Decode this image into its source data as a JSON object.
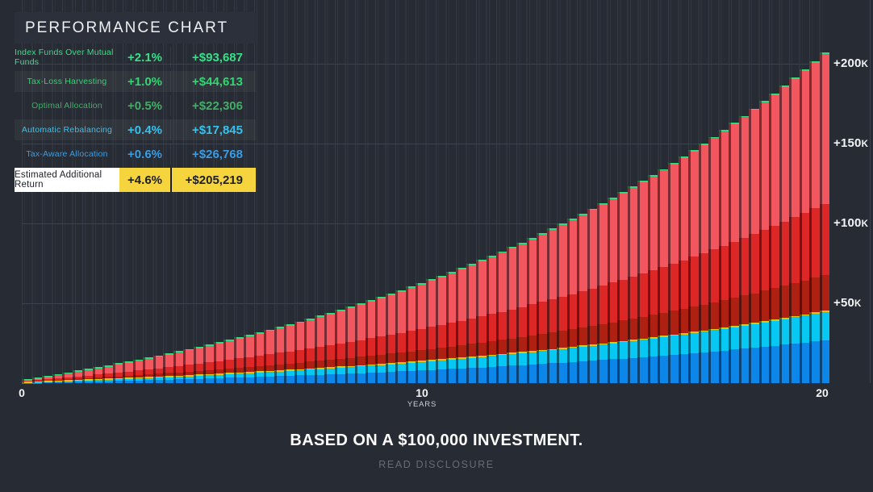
{
  "colors": {
    "page_bg": "#272b33",
    "panel_header_bg": "#2b303a",
    "highlight_label_bg": "#ffffff",
    "highlight_value_bg": "#f6d43d",
    "highlight_text": "#1d1f24",
    "grid_line": "#3b414d"
  },
  "legend": {
    "title": "PERFORMANCE CHART",
    "rows": [
      {
        "label": "Index Funds Over Mutual Funds",
        "percent": "+2.1%",
        "amount": "+$93,687",
        "color": "#35e088",
        "highlight": false
      },
      {
        "label": "Tax-Loss Harvesting",
        "percent": "+1.0%",
        "amount": "+$44,613",
        "color": "#2fd671",
        "highlight": false
      },
      {
        "label": "Optimal Allocation",
        "percent": "+0.5%",
        "amount": "+$22,306",
        "color": "#43ad67",
        "highlight": false
      },
      {
        "label": "Automatic Rebalancing",
        "percent": "+0.4%",
        "amount": "+$17,845",
        "color": "#36c2ee",
        "highlight": false
      },
      {
        "label": "Tax-Aware Allocation",
        "percent": "+0.6%",
        "amount": "+$26,768",
        "color": "#3a9ce2",
        "highlight": false
      },
      {
        "label": "Estimated Additional Return",
        "percent": "+4.6%",
        "amount": "+$205,219",
        "color": "#1d1f24",
        "highlight": true
      }
    ]
  },
  "chart_data": {
    "type": "bar",
    "stacked": true,
    "grid": true,
    "legend_position": "top-left",
    "years": 20,
    "bars_per_year": 4,
    "growth_model": "compound",
    "annual_growth_factor": 1.09,
    "final_total": 205219,
    "series": [
      {
        "name": "Tax-Aware Allocation",
        "value": 26768,
        "color": "#0d86e9"
      },
      {
        "name": "Automatic Rebalancing",
        "value": 17845,
        "color": "#07c8f2",
        "hairline_above": true
      },
      {
        "name": "Optimal Allocation",
        "value": 22306,
        "color": "#ad2012"
      },
      {
        "name": "Tax-Loss Harvesting",
        "value": 44613,
        "color": "#dd2727"
      },
      {
        "name": "Index Funds Over Mutual Funds",
        "value": 93687,
        "color": "#f2565f"
      }
    ],
    "hairline_color": "#e0c516",
    "cap_color": "#2ddd7d",
    "xlabel": "YEARS",
    "x_ticks": [
      {
        "value": 0,
        "label": "0"
      },
      {
        "value": 10,
        "label": "10"
      },
      {
        "value": 20,
        "label": "20"
      }
    ],
    "y_ticks": [
      {
        "value": 50000,
        "label": "+50K"
      },
      {
        "value": 100000,
        "label": "+100K"
      },
      {
        "value": 150000,
        "label": "+150K"
      },
      {
        "value": 200000,
        "label": "+200K"
      }
    ],
    "ylim": [
      0,
      240000
    ]
  },
  "footer": {
    "heading": "BASED ON A $100,000 INVESTMENT.",
    "link": "READ DISCLOSURE"
  }
}
